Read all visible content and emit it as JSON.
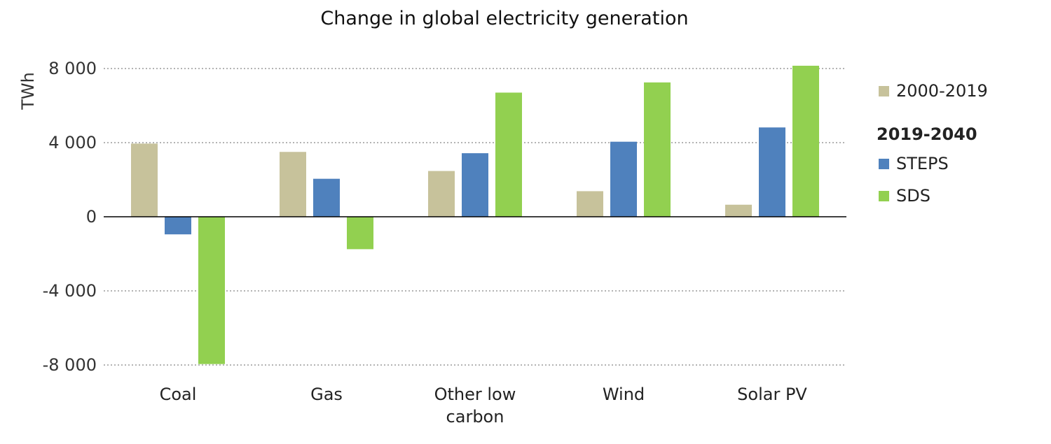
{
  "chart_data": {
    "type": "bar",
    "title": "Change in global electricity generation",
    "xlabel": "",
    "ylabel": "TWh",
    "ylim": [
      -8000,
      8000
    ],
    "yticks": [
      8000,
      4000,
      0,
      -4000,
      -8000
    ],
    "ytick_labels": [
      "8 000",
      "4 000",
      "0",
      "-4 000",
      "-8 000"
    ],
    "categories": [
      "Coal",
      "Gas",
      "Other low carbon",
      "Wind",
      "Solar PV"
    ],
    "category_labels": [
      [
        "Coal"
      ],
      [
        "Gas"
      ],
      [
        "Other low",
        "carbon"
      ],
      [
        "Wind"
      ],
      [
        "Solar PV"
      ]
    ],
    "series": [
      {
        "name": "2000-2019",
        "color": "#c7c29b",
        "values": [
          3950,
          3500,
          2470,
          1380,
          650
        ]
      },
      {
        "name": "STEPS",
        "color": "#4f81bd",
        "values": [
          -950,
          2050,
          3430,
          4050,
          4820
        ]
      },
      {
        "name": "SDS",
        "color": "#92d050",
        "values": [
          -7950,
          -1750,
          6700,
          7250,
          8150
        ]
      }
    ],
    "legend": {
      "position": "right",
      "group_heading": "2019-2040",
      "heading_before_series": 1
    },
    "grid": true
  }
}
